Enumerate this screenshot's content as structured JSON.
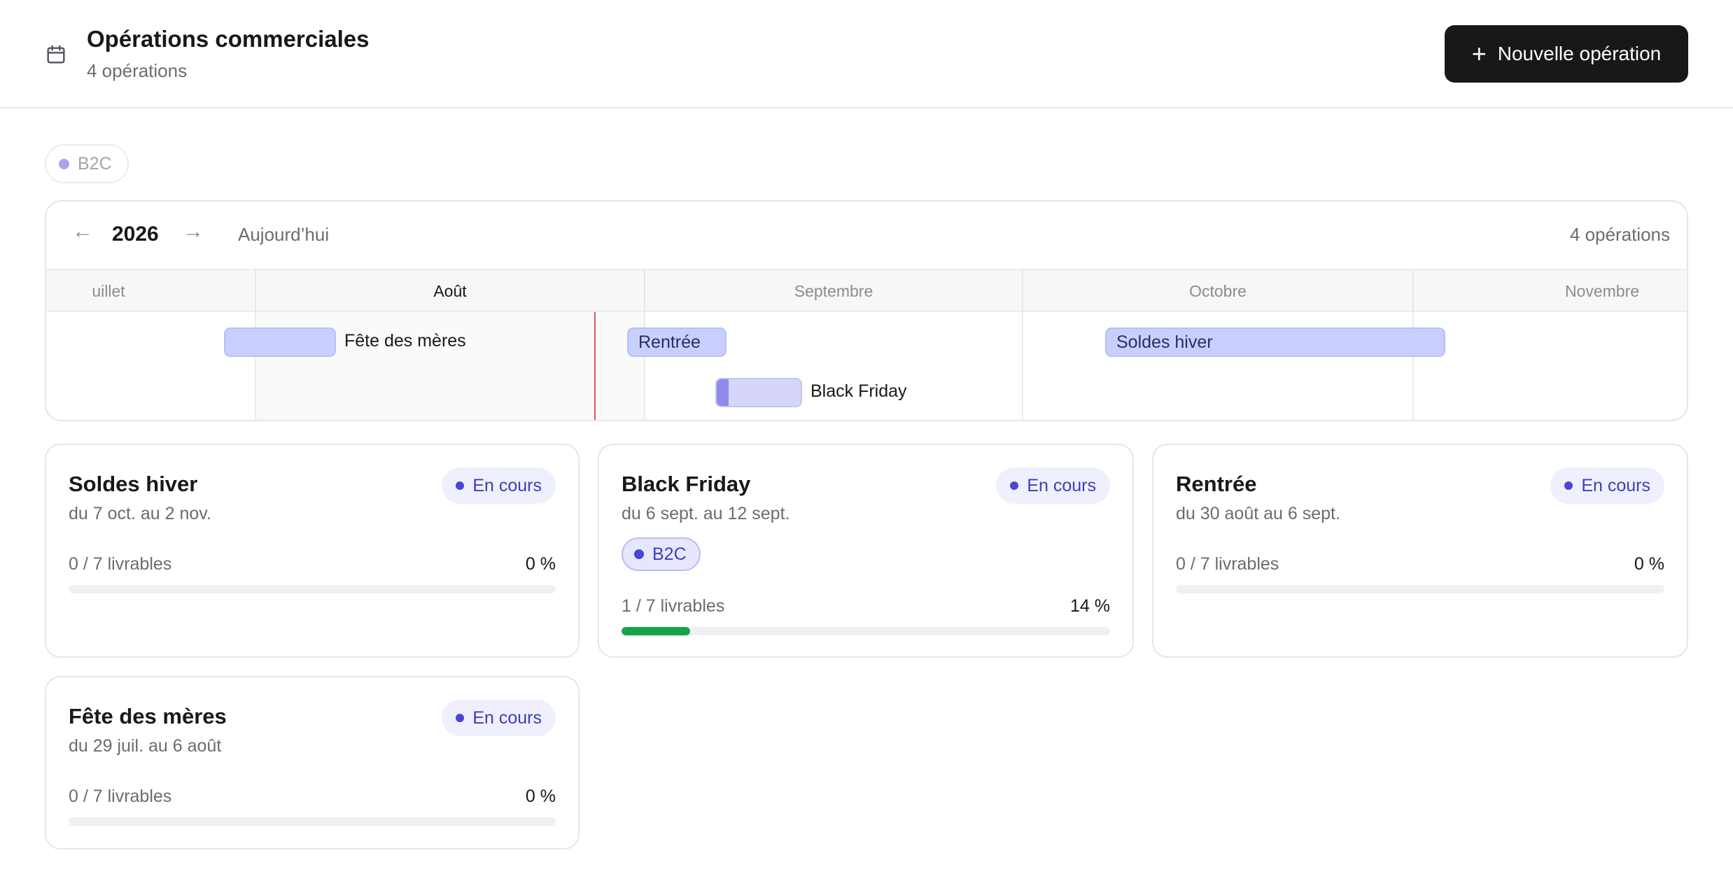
{
  "header": {
    "icon": "calendar-icon",
    "title": "Opérations commerciales",
    "subtitle": "4 opérations",
    "new_button_label": "Nouvelle opération"
  },
  "filter": {
    "label": "B2C",
    "dot_color": "#a9a4ec"
  },
  "timeline": {
    "year": "2026",
    "today_label": "Aujourd’hui",
    "count_label": "4 opérations",
    "months": [
      "uillet",
      "Août",
      "Septembre",
      "Octobre",
      "Novembre"
    ],
    "current_month": "Août",
    "bars": {
      "fete": {
        "label": "Fête des mères"
      },
      "rentree": {
        "label": "Rentrée"
      },
      "soldes": {
        "label": "Soldes hiver"
      },
      "blackfriday": {
        "label": "Black Friday",
        "progress": 0.14
      }
    }
  },
  "cards": [
    {
      "title": "Soldes hiver",
      "dates": "du 7 oct. au 2 nov.",
      "status": "En cours",
      "deliverables": "0 / 7 livrables",
      "percent_label": "0 %",
      "progress": 0
    },
    {
      "title": "Black Friday",
      "dates": "du 6 sept. au 12 sept.",
      "status": "En cours",
      "tag": "B2C",
      "deliverables": "1 / 7 livrables",
      "percent_label": "14 %",
      "progress": 0.14
    },
    {
      "title": "Rentrée",
      "dates": "du 30 août au 6 sept.",
      "status": "En cours",
      "deliverables": "0 / 7 livrables",
      "percent_label": "0 %",
      "progress": 0
    },
    {
      "title": "Fête des mères",
      "dates": "du 29 juil. au 6 août",
      "status": "En cours",
      "deliverables": "0 / 7 livrables",
      "percent_label": "0 %",
      "progress": 0
    }
  ],
  "colors": {
    "accent": "#18181b",
    "progress_fill": "#16a34a",
    "status_text": "#3b3fb7",
    "today_line": "#e0535e"
  }
}
